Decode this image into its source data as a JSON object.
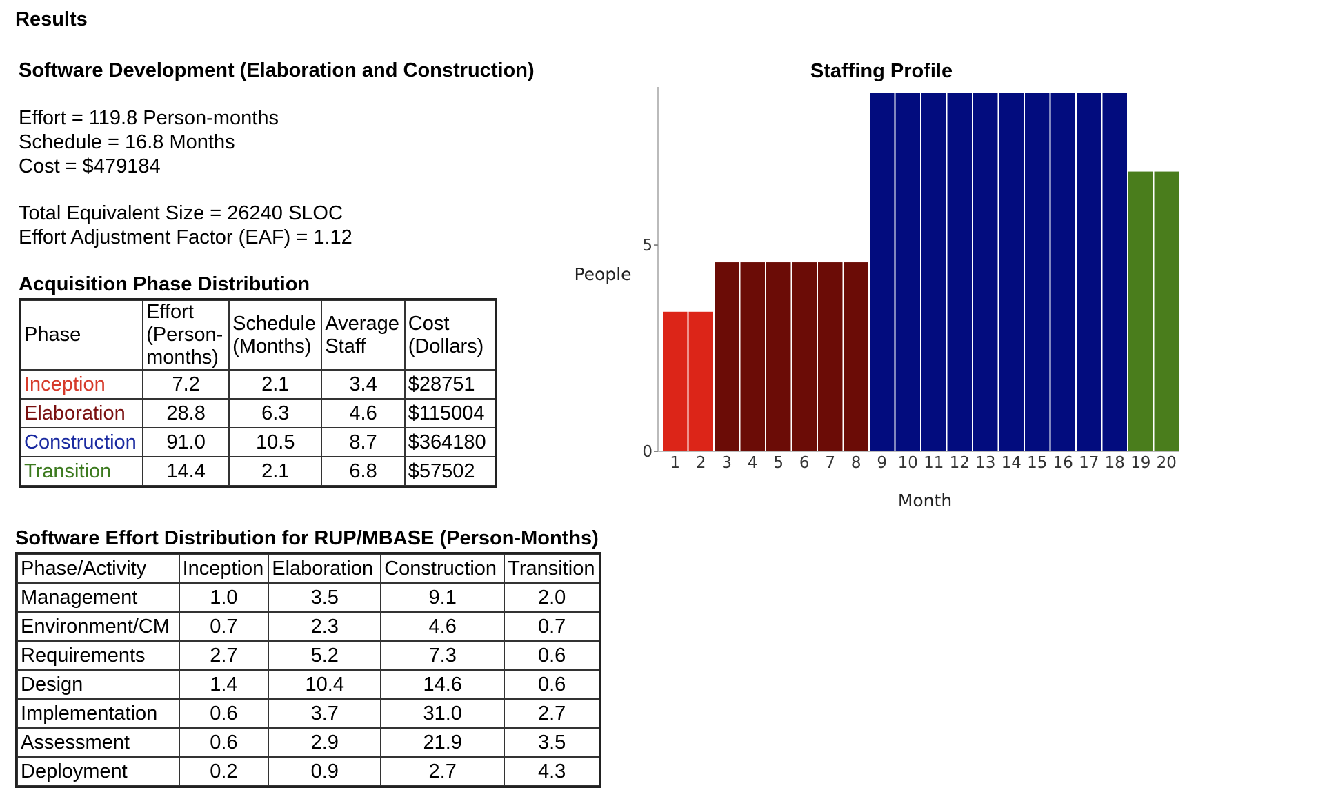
{
  "page": {
    "results_title": "Results",
    "dev_title": "Software Development (Elaboration and Construction)",
    "effort_line": "Effort = 119.8 Person-months",
    "schedule_line": "Schedule = 16.8 Months",
    "cost_line": "Cost = $479184",
    "size_line": "Total Equivalent Size = 26240 SLOC",
    "eaf_line": "Effort Adjustment Factor (EAF) = 1.12"
  },
  "acquisition": {
    "title": "Acquisition Phase Distribution",
    "headers": [
      "Phase",
      "Effort (Person-months)",
      "Schedule (Months)",
      "Average Staff",
      "Cost (Dollars)"
    ],
    "rows": [
      {
        "phase": "Inception",
        "effort": "7.2",
        "schedule": "2.1",
        "staff": "3.4",
        "cost": "$28751"
      },
      {
        "phase": "Elaboration",
        "effort": "28.8",
        "schedule": "6.3",
        "staff": "4.6",
        "cost": "$115004"
      },
      {
        "phase": "Construction",
        "effort": "91.0",
        "schedule": "10.5",
        "staff": "8.7",
        "cost": "$364180"
      },
      {
        "phase": "Transition",
        "effort": "14.4",
        "schedule": "2.1",
        "staff": "6.8",
        "cost": "$57502"
      }
    ]
  },
  "effort_distribution": {
    "title": "Software Effort Distribution for RUP/MBASE (Person-Months)",
    "headers": [
      "Phase/Activity",
      "Inception",
      "Elaboration",
      "Construction",
      "Transition"
    ],
    "rows": [
      {
        "activity": "Management",
        "values": [
          "1.0",
          "3.5",
          "9.1",
          "2.0"
        ]
      },
      {
        "activity": "Environment/CM",
        "values": [
          "0.7",
          "2.3",
          "4.6",
          "0.7"
        ]
      },
      {
        "activity": "Requirements",
        "values": [
          "2.7",
          "5.2",
          "7.3",
          "0.6"
        ]
      },
      {
        "activity": "Design",
        "values": [
          "1.4",
          "10.4",
          "14.6",
          "0.6"
        ]
      },
      {
        "activity": "Implementation",
        "values": [
          "0.6",
          "3.7",
          "31.0",
          "2.7"
        ]
      },
      {
        "activity": "Assessment",
        "values": [
          "0.6",
          "2.9",
          "21.9",
          "3.5"
        ]
      },
      {
        "activity": "Deployment",
        "values": [
          "0.2",
          "0.9",
          "2.7",
          "4.3"
        ]
      }
    ]
  },
  "colors": {
    "inception": "#dc2518",
    "elaboration": "#6b0c06",
    "construction": "#020c7e",
    "transition": "#4a7d1c"
  },
  "chart_data": {
    "type": "bar",
    "title": "Staffing Profile",
    "xlabel": "Month",
    "ylabel": "People",
    "categories": [
      "1",
      "2",
      "3",
      "4",
      "5",
      "6",
      "7",
      "8",
      "9",
      "10",
      "11",
      "12",
      "13",
      "14",
      "15",
      "16",
      "17",
      "18",
      "19",
      "20"
    ],
    "values": [
      3.4,
      3.4,
      4.6,
      4.6,
      4.6,
      4.6,
      4.6,
      4.6,
      8.7,
      8.7,
      8.7,
      8.7,
      8.7,
      8.7,
      8.7,
      8.7,
      8.7,
      8.7,
      6.8,
      6.8
    ],
    "phases": [
      "inception",
      "inception",
      "elaboration",
      "elaboration",
      "elaboration",
      "elaboration",
      "elaboration",
      "elaboration",
      "construction",
      "construction",
      "construction",
      "construction",
      "construction",
      "construction",
      "construction",
      "construction",
      "construction",
      "construction",
      "transition",
      "transition"
    ],
    "yticks": [
      0,
      5
    ],
    "ylim": [
      0,
      8.7
    ],
    "grid": false,
    "legend": "none"
  }
}
